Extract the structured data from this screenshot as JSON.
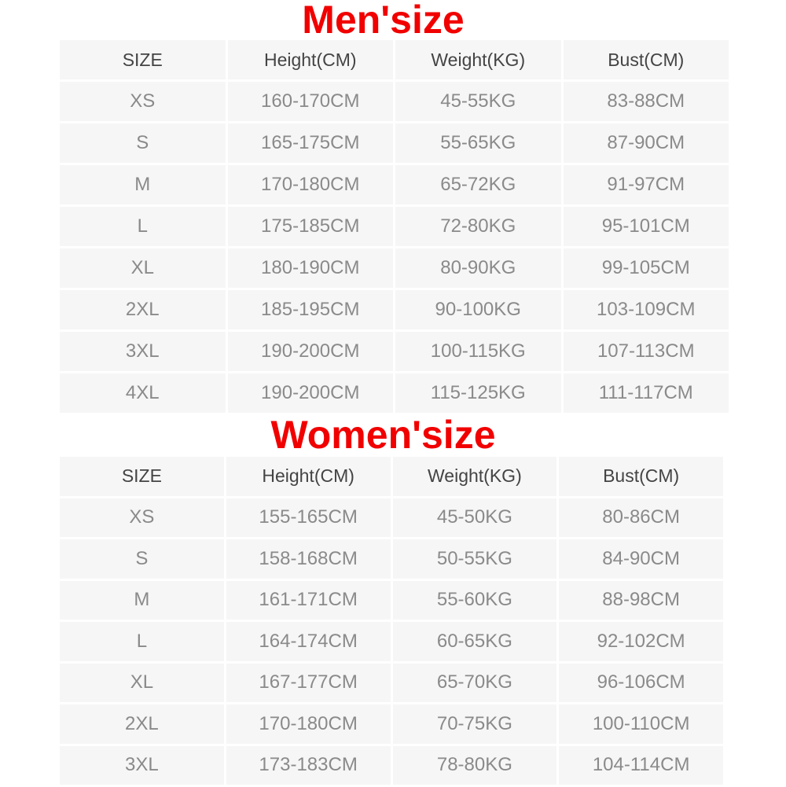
{
  "men": {
    "title": "Men'size",
    "headers": [
      "SIZE",
      "Height(CM)",
      "Weight(KG)",
      "Bust(CM)"
    ],
    "rows": [
      [
        "XS",
        "160-170CM",
        "45-55KG",
        "83-88CM"
      ],
      [
        "S",
        "165-175CM",
        "55-65KG",
        "87-90CM"
      ],
      [
        "M",
        "170-180CM",
        "65-72KG",
        "91-97CM"
      ],
      [
        "L",
        "175-185CM",
        "72-80KG",
        "95-101CM"
      ],
      [
        "XL",
        "180-190CM",
        "80-90KG",
        "99-105CM"
      ],
      [
        "2XL",
        "185-195CM",
        "90-100KG",
        "103-109CM"
      ],
      [
        "3XL",
        "190-200CM",
        "100-115KG",
        "107-113CM"
      ],
      [
        "4XL",
        "190-200CM",
        "115-125KG",
        "111-117CM"
      ]
    ]
  },
  "women": {
    "title": "Women'size",
    "headers": [
      "SIZE",
      "Height(CM)",
      "Weight(KG)",
      "Bust(CM)"
    ],
    "rows": [
      [
        "XS",
        "155-165CM",
        "45-50KG",
        "80-86CM"
      ],
      [
        "S",
        "158-168CM",
        "50-55KG",
        "84-90CM"
      ],
      [
        "M",
        "161-171CM",
        "55-60KG",
        "88-98CM"
      ],
      [
        "L",
        "164-174CM",
        "60-65KG",
        "92-102CM"
      ],
      [
        "XL",
        "167-177CM",
        "65-70KG",
        "96-106CM"
      ],
      [
        "2XL",
        "170-180CM",
        "70-75KG",
        "100-110CM"
      ],
      [
        "3XL",
        "173-183CM",
        "78-80KG",
        "104-114CM"
      ]
    ]
  },
  "colors": {
    "title": "#f10000",
    "cell": "#f6f6f6",
    "header_text": "#444444",
    "body_text": "#8a8a8a"
  }
}
